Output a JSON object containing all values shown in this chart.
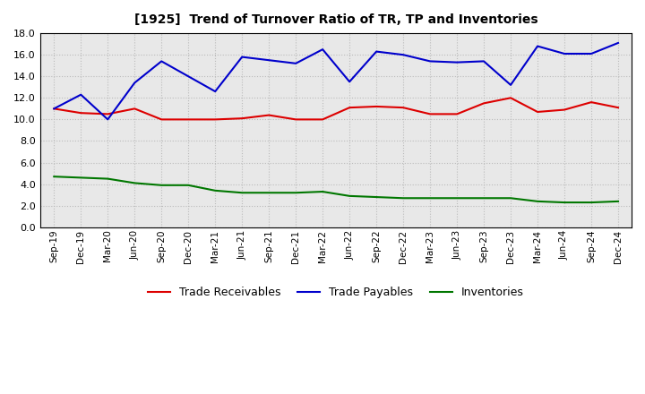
{
  "title": "[1925]  Trend of Turnover Ratio of TR, TP and Inventories",
  "x_labels": [
    "Sep-19",
    "Dec-19",
    "Mar-20",
    "Jun-20",
    "Sep-20",
    "Dec-20",
    "Mar-21",
    "Jun-21",
    "Sep-21",
    "Dec-21",
    "Mar-22",
    "Jun-22",
    "Sep-22",
    "Dec-22",
    "Mar-23",
    "Jun-23",
    "Sep-23",
    "Dec-23",
    "Mar-24",
    "Jun-24",
    "Sep-24",
    "Dec-24"
  ],
  "trade_receivables": [
    11.0,
    10.6,
    10.5,
    11.0,
    10.0,
    10.0,
    10.0,
    10.1,
    10.4,
    10.0,
    10.0,
    11.1,
    11.2,
    11.1,
    10.5,
    10.5,
    11.5,
    12.0,
    10.7,
    10.9,
    11.6,
    11.1
  ],
  "trade_payables": [
    11.0,
    12.3,
    10.0,
    13.4,
    15.4,
    14.0,
    12.6,
    15.8,
    15.5,
    15.2,
    16.5,
    13.5,
    16.3,
    16.0,
    15.4,
    15.3,
    15.4,
    13.2,
    16.8,
    16.1,
    16.1,
    17.1
  ],
  "inventories": [
    4.7,
    4.6,
    4.5,
    4.1,
    3.9,
    3.9,
    3.4,
    3.2,
    3.2,
    3.2,
    3.3,
    2.9,
    2.8,
    2.7,
    2.7,
    2.7,
    2.7,
    2.7,
    2.4,
    2.3,
    2.3,
    2.4
  ],
  "color_tr": "#dd0000",
  "color_tp": "#0000cc",
  "color_inv": "#007700",
  "ylim": [
    0.0,
    18.0
  ],
  "yticks": [
    0.0,
    2.0,
    4.0,
    6.0,
    8.0,
    10.0,
    12.0,
    14.0,
    16.0,
    18.0
  ],
  "legend_labels": [
    "Trade Receivables",
    "Trade Payables",
    "Inventories"
  ],
  "background_color": "#ffffff",
  "plot_bg_color": "#e8e8e8",
  "grid_color": "#bbbbbb"
}
